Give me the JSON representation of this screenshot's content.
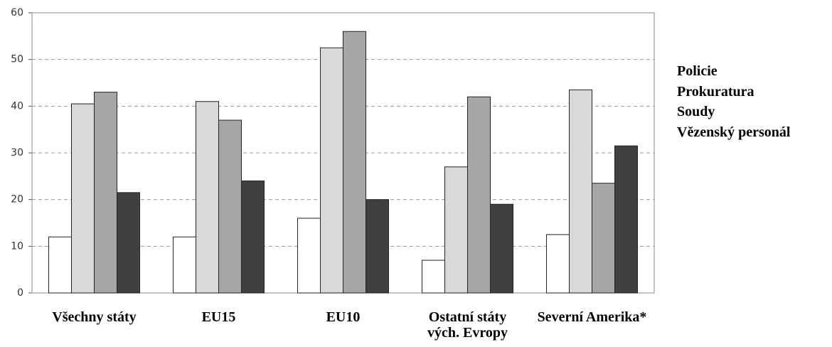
{
  "chart_data": {
    "type": "bar",
    "categories": [
      "Všechny státy",
      "EU15",
      "EU10",
      "Ostatní státy\nvých. Evropy",
      "Severní Amerika*"
    ],
    "series": [
      {
        "name": "Policie",
        "color": "#ffffff",
        "values": [
          12,
          12,
          16,
          7,
          12.5
        ]
      },
      {
        "name": "Prokuratura",
        "color": "#d9d9d9",
        "values": [
          40.5,
          41,
          52.5,
          27,
          43.5
        ]
      },
      {
        "name": "Soudy",
        "color": "#a6a6a6",
        "values": [
          43,
          37,
          56,
          42,
          23.5
        ]
      },
      {
        "name": "Vězenský personál",
        "color": "#404040",
        "values": [
          21.5,
          24,
          20,
          19,
          31.5
        ]
      }
    ],
    "ylim": [
      0,
      60
    ],
    "yticks": [
      0,
      10,
      20,
      30,
      40,
      50,
      60
    ],
    "grid": true
  }
}
